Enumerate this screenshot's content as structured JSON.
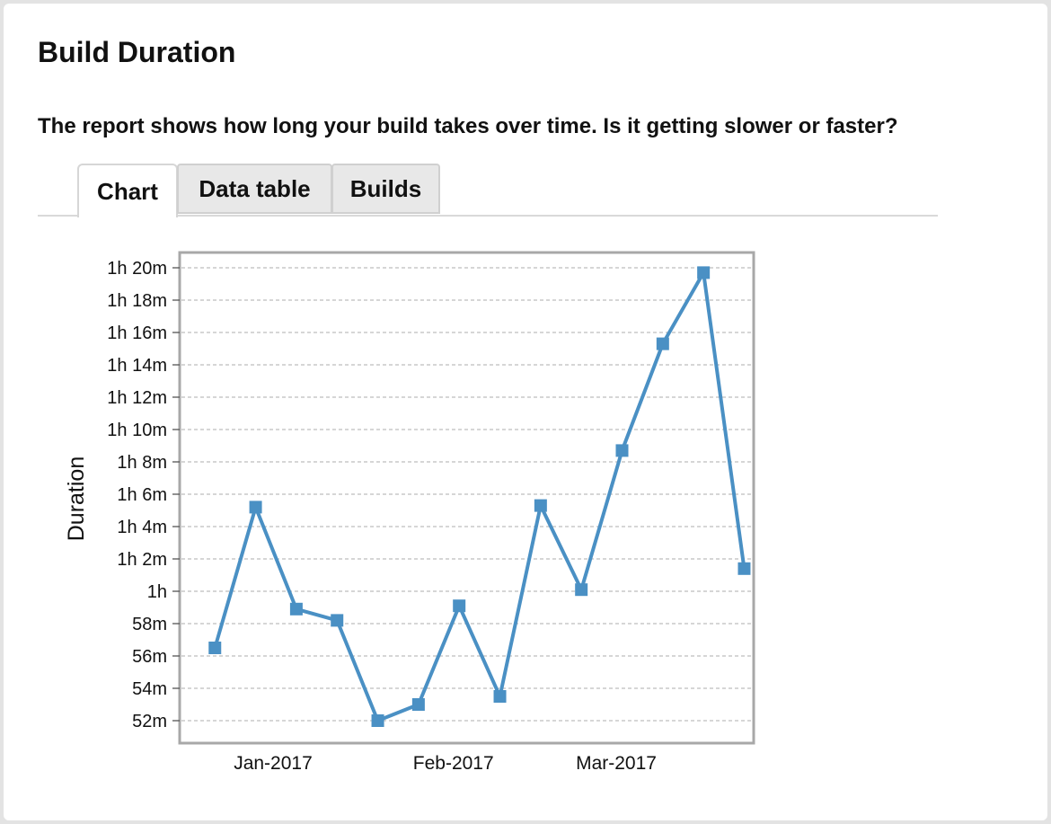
{
  "report": {
    "title": "Build Duration",
    "description": "The report shows how long your build takes over time. Is it getting slower or faster?"
  },
  "tabs": [
    {
      "label": "Chart",
      "active": true
    },
    {
      "label": "Data table",
      "active": false
    },
    {
      "label": "Builds",
      "active": false
    }
  ],
  "colors": {
    "series": "#4a90c4",
    "grid": "#bdbdbd",
    "frame": "#a8a8a8"
  },
  "chart_data": {
    "type": "line",
    "ylabel": "Duration",
    "xlabel": "",
    "yunit": "minutes",
    "ylim": [
      51,
      81
    ],
    "yticks": [
      {
        "value": 52,
        "label": "52m"
      },
      {
        "value": 54,
        "label": "54m"
      },
      {
        "value": 56,
        "label": "56m"
      },
      {
        "value": 58,
        "label": "58m"
      },
      {
        "value": 60,
        "label": "1h"
      },
      {
        "value": 62,
        "label": "1h 2m"
      },
      {
        "value": 64,
        "label": "1h 4m"
      },
      {
        "value": 66,
        "label": "1h 6m"
      },
      {
        "value": 68,
        "label": "1h 8m"
      },
      {
        "value": 70,
        "label": "1h 10m"
      },
      {
        "value": 72,
        "label": "1h 12m"
      },
      {
        "value": 74,
        "label": "1h 14m"
      },
      {
        "value": 76,
        "label": "1h 16m"
      },
      {
        "value": 78,
        "label": "1h 18m"
      },
      {
        "value": 80,
        "label": "1h 20m"
      }
    ],
    "xticks": [
      {
        "date": "2017-01-01",
        "label": "Jan-2017"
      },
      {
        "date": "2017-02-01",
        "label": "Feb-2017"
      },
      {
        "date": "2017-03-01",
        "label": "Mar-2017"
      }
    ],
    "xlim": [
      "2016-12-18",
      "2017-03-31"
    ],
    "grid": true,
    "legend": "none",
    "marker": "square",
    "series": [
      {
        "points": [
          {
            "x": "2016-12-22",
            "y": 56.5
          },
          {
            "x": "2016-12-29",
            "y": 65.2
          },
          {
            "x": "2017-01-05",
            "y": 58.9
          },
          {
            "x": "2017-01-12",
            "y": 58.2
          },
          {
            "x": "2017-01-19",
            "y": 52.0
          },
          {
            "x": "2017-01-26",
            "y": 53.0
          },
          {
            "x": "2017-02-02",
            "y": 59.1
          },
          {
            "x": "2017-02-09",
            "y": 53.5
          },
          {
            "x": "2017-02-16",
            "y": 65.3
          },
          {
            "x": "2017-02-23",
            "y": 60.1
          },
          {
            "x": "2017-03-02",
            "y": 68.7
          },
          {
            "x": "2017-03-09",
            "y": 75.3
          },
          {
            "x": "2017-03-16",
            "y": 79.7
          },
          {
            "x": "2017-03-23",
            "y": 61.4
          }
        ]
      }
    ]
  }
}
